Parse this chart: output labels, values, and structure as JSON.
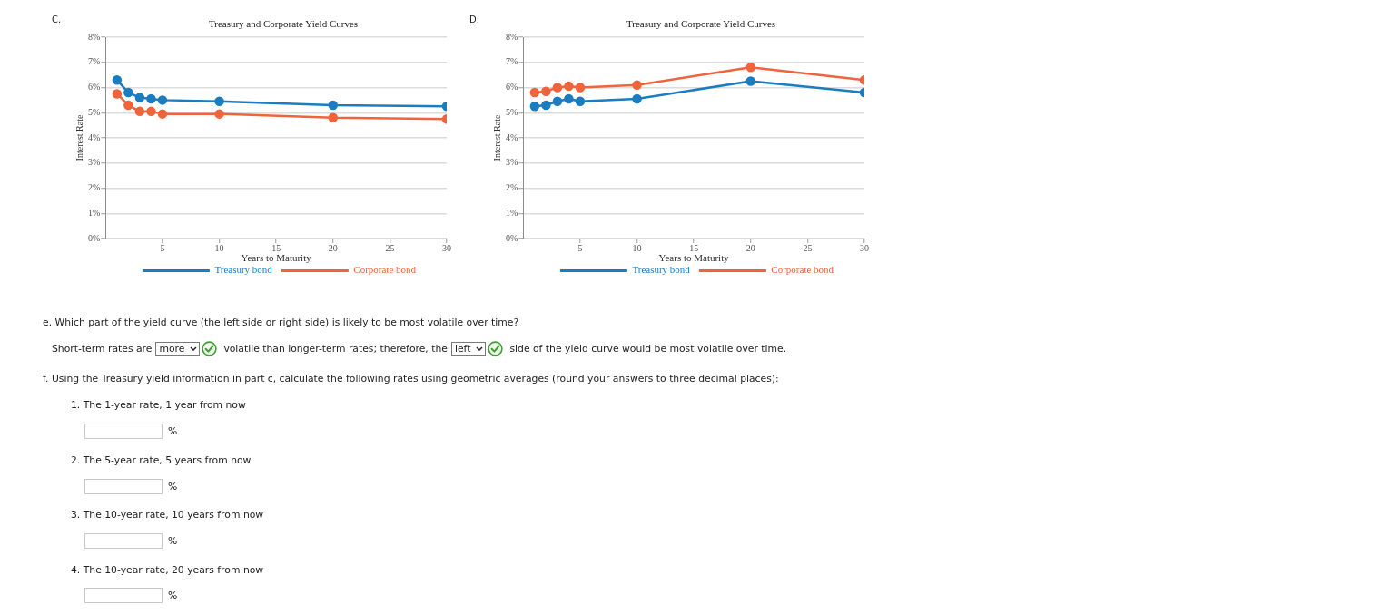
{
  "chart_data": [
    {
      "type": "line",
      "title": "Treasury and Corporate Yield Curves",
      "xlabel": "Years to Maturity",
      "ylabel": "Interest Rate",
      "annotations": [
        "C."
      ],
      "x": [
        1,
        2,
        3,
        4,
        5,
        10,
        20,
        30
      ],
      "series": [
        {
          "name": "Treasury bond",
          "color": "#1b7cc0",
          "values": [
            6.3,
            5.8,
            5.6,
            5.55,
            5.5,
            5.45,
            5.3,
            5.25
          ]
        },
        {
          "name": "Corporate bond",
          "color": "#f0643c",
          "values": [
            5.75,
            5.3,
            5.05,
            5.05,
            4.95,
            4.95,
            4.8,
            4.75
          ]
        }
      ],
      "xlim": [
        0,
        30
      ],
      "xticks": [
        5,
        10,
        15,
        20,
        25,
        30
      ],
      "ylim": [
        0,
        8
      ],
      "yticks": [
        {
          "value": 0,
          "label": "0%"
        },
        {
          "value": 1,
          "label": "1%"
        },
        {
          "value": 2,
          "label": "2%"
        },
        {
          "value": 3,
          "label": "3%"
        },
        {
          "value": 4,
          "label": "4%"
        },
        {
          "value": 5,
          "label": "5%"
        },
        {
          "value": 6,
          "label": "6%"
        },
        {
          "value": 7,
          "label": "7%"
        },
        {
          "value": 8,
          "label": "8%"
        }
      ],
      "grid": "y",
      "legend": "bottom",
      "marker": "circle"
    },
    {
      "type": "line",
      "title": "Treasury and Corporate Yield Curves",
      "xlabel": "Years to Maturity",
      "ylabel": "Interest Rate",
      "annotations": [
        "D."
      ],
      "x": [
        1,
        2,
        3,
        4,
        5,
        10,
        20,
        30
      ],
      "series": [
        {
          "name": "Treasury bond",
          "color": "#1b7cc0",
          "values": [
            5.25,
            5.3,
            5.45,
            5.55,
            5.45,
            5.55,
            6.25,
            5.8
          ]
        },
        {
          "name": "Corporate bond",
          "color": "#f0643c",
          "values": [
            5.8,
            5.85,
            6.0,
            6.05,
            6.0,
            6.1,
            6.8,
            6.3
          ]
        }
      ],
      "xlim": [
        0,
        30
      ],
      "xticks": [
        5,
        10,
        15,
        20,
        25,
        30
      ],
      "ylim": [
        0,
        8
      ],
      "yticks": [
        {
          "value": 0,
          "label": "0%"
        },
        {
          "value": 1,
          "label": "1%"
        },
        {
          "value": 2,
          "label": "2%"
        },
        {
          "value": 3,
          "label": "3%"
        },
        {
          "value": 4,
          "label": "4%"
        },
        {
          "value": 5,
          "label": "5%"
        },
        {
          "value": 6,
          "label": "6%"
        },
        {
          "value": 7,
          "label": "7%"
        },
        {
          "value": 8,
          "label": "8%"
        }
      ],
      "grid": "y",
      "legend": "bottom",
      "marker": "circle"
    },
    {
      "type": "other",
      "annotations": [
        "e. Which part of the yield curve (the left side or right side) is likely to be most volatile over time?",
        "Short-term rates are",
        "more",
        "volatile than longer-term rates; therefore, the",
        "left",
        "side of the yield curve would be most volatile over time.",
        "f. Using the Treasury yield information in part c, calculate the following rates using geometric averages (round your answers to three decimal places):",
        "1. The 1-year rate, 1 year from now",
        "%",
        "2. The 5-year rate, 5 years from now",
        "%",
        "3. The 10-year rate, 10 years from now",
        "%",
        "4. The 10-year rate, 20 years from now",
        "%"
      ]
    }
  ]
}
